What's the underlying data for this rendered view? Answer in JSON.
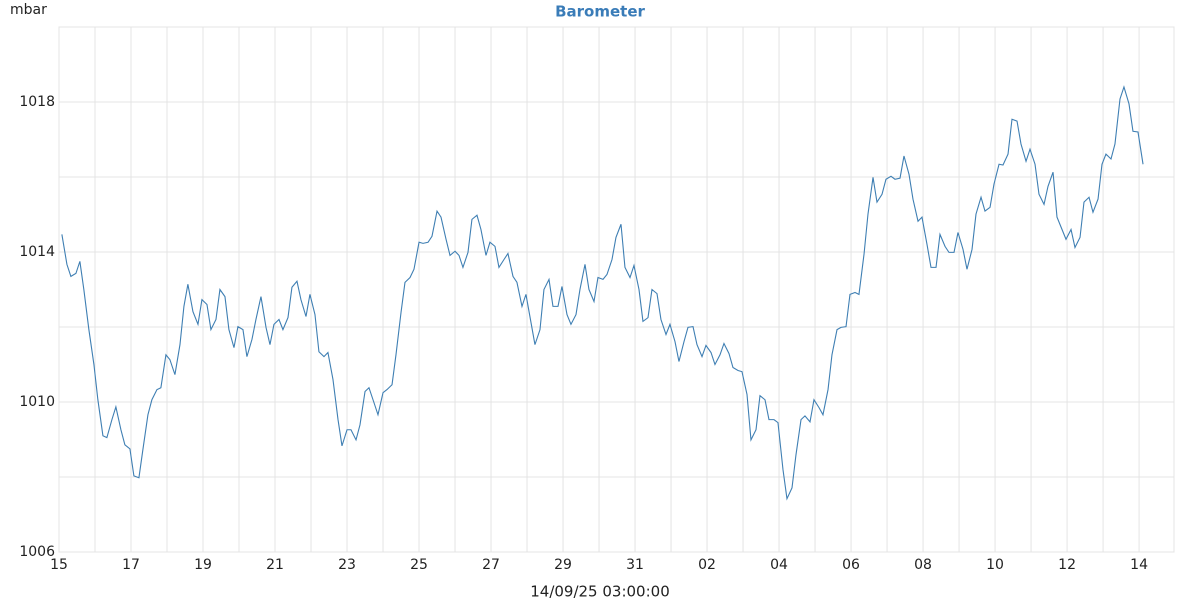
{
  "chart_data": {
    "type": "line",
    "title": "Barometer",
    "ylabel": "mbar",
    "xlabel": "14/09/25 03:00:00",
    "color": "#3f7fb3",
    "grid": true,
    "xlim": [
      0,
      30.97
    ],
    "ylim": [
      1006,
      1020
    ],
    "yticks": [
      1006,
      1010,
      1014,
      1018
    ],
    "yminor_ticks": [
      1008,
      1012,
      1016,
      1020
    ],
    "xticks": [
      {
        "value": 0,
        "label": "15"
      },
      {
        "value": 2,
        "label": "17"
      },
      {
        "value": 4,
        "label": "19"
      },
      {
        "value": 6,
        "label": "21"
      },
      {
        "value": 8,
        "label": "23"
      },
      {
        "value": 10,
        "label": "25"
      },
      {
        "value": 12,
        "label": "27"
      },
      {
        "value": 14,
        "label": "29"
      },
      {
        "value": 16,
        "label": "31"
      },
      {
        "value": 18,
        "label": "02"
      },
      {
        "value": 20,
        "label": "04"
      },
      {
        "value": 22,
        "label": "06"
      },
      {
        "value": 24,
        "label": "08"
      },
      {
        "value": 26,
        "label": "10"
      },
      {
        "value": 28,
        "label": "12"
      },
      {
        "value": 30,
        "label": "14"
      }
    ],
    "xminor_ticks": [
      1,
      3,
      5,
      7,
      9,
      11,
      13,
      15,
      17,
      19,
      21,
      23,
      25,
      27,
      29
    ],
    "x": [
      0.08,
      0.22,
      0.33,
      0.47,
      0.58,
      0.69,
      0.83,
      0.97,
      1.08,
      1.22,
      1.33,
      1.47,
      1.58,
      1.72,
      1.83,
      1.97,
      2.08,
      2.22,
      2.33,
      2.47,
      2.58,
      2.72,
      2.83,
      2.97,
      3.08,
      3.22,
      3.36,
      3.47,
      3.58,
      3.72,
      3.86,
      3.97,
      4.11,
      4.22,
      4.36,
      4.47,
      4.61,
      4.72,
      4.86,
      4.97,
      5.11,
      5.22,
      5.36,
      5.47,
      5.61,
      5.75,
      5.86,
      5.97,
      6.11,
      6.22,
      6.36,
      6.47,
      6.61,
      6.72,
      6.86,
      6.97,
      7.11,
      7.22,
      7.36,
      7.47,
      7.61,
      7.75,
      7.86,
      8.0,
      8.11,
      8.25,
      8.36,
      8.5,
      8.61,
      8.75,
      8.86,
      9.0,
      9.11,
      9.25,
      9.36,
      9.5,
      9.61,
      9.75,
      9.86,
      10.0,
      10.11,
      10.25,
      10.36,
      10.5,
      10.61,
      10.75,
      10.86,
      11.0,
      11.11,
      11.22,
      11.36,
      11.47,
      11.61,
      11.72,
      11.86,
      11.97,
      12.11,
      12.22,
      12.36,
      12.47,
      12.61,
      12.72,
      12.86,
      12.97,
      13.11,
      13.22,
      13.36,
      13.47,
      13.61,
      13.72,
      13.86,
      13.97,
      14.11,
      14.22,
      14.36,
      14.47,
      14.61,
      14.72,
      14.86,
      14.97,
      15.11,
      15.22,
      15.36,
      15.47,
      15.61,
      15.72,
      15.86,
      15.97,
      16.11,
      16.22,
      16.36,
      16.47,
      16.61,
      16.72,
      16.86,
      16.97,
      17.11,
      17.22,
      17.36,
      17.47,
      17.61,
      17.72,
      17.86,
      17.97,
      18.11,
      18.22,
      18.36,
      18.47,
      18.61,
      18.72,
      18.86,
      18.97,
      19.11,
      19.22,
      19.36,
      19.47,
      19.61,
      19.72,
      19.86,
      19.97,
      20.11,
      20.22,
      20.36,
      20.47,
      20.61,
      20.72,
      20.86,
      20.97,
      21.11,
      21.22,
      21.36,
      21.47,
      21.61,
      21.72,
      21.86,
      21.97,
      22.11,
      22.22,
      22.36,
      22.47,
      22.61,
      22.72,
      22.86,
      22.97,
      23.11,
      23.22,
      23.36,
      23.47,
      23.61,
      23.72,
      23.86,
      23.97,
      24.11,
      24.22,
      24.36,
      24.47,
      24.61,
      24.72,
      24.86,
      24.97,
      25.11,
      25.22,
      25.36,
      25.47,
      25.61,
      25.72,
      25.86,
      25.97,
      26.11,
      26.22,
      26.36,
      26.47,
      26.61,
      26.72,
      26.86,
      26.97,
      27.11,
      27.22,
      27.36,
      27.47,
      27.61,
      27.72,
      27.86,
      27.97,
      28.11,
      28.22,
      28.36,
      28.47,
      28.61,
      28.72,
      28.86,
      28.97,
      29.08,
      29.22,
      29.33,
      29.47,
      29.58,
      29.72,
      29.83,
      29.97,
      30.11
    ],
    "values": [
      1014.47,
      1013.67,
      1013.35,
      1013.43,
      1013.75,
      1013.0,
      1011.93,
      1011.0,
      1010.06,
      1009.1,
      1009.05,
      1009.53,
      1009.87,
      1009.26,
      1008.86,
      1008.75,
      1008.03,
      1007.98,
      1008.73,
      1009.66,
      1010.06,
      1010.33,
      1010.38,
      1011.26,
      1011.13,
      1010.73,
      1011.53,
      1012.55,
      1013.14,
      1012.41,
      1012.07,
      1012.73,
      1012.6,
      1011.93,
      1012.2,
      1013.0,
      1012.81,
      1011.93,
      1011.45,
      1012.01,
      1011.93,
      1011.21,
      1011.67,
      1012.2,
      1012.81,
      1011.99,
      1011.53,
      1012.07,
      1012.2,
      1011.93,
      1012.25,
      1013.06,
      1013.22,
      1012.73,
      1012.28,
      1012.87,
      1012.33,
      1011.34,
      1011.21,
      1011.32,
      1010.6,
      1009.53,
      1008.83,
      1009.26,
      1009.26,
      1008.99,
      1009.39,
      1010.28,
      1010.38,
      1009.98,
      1009.66,
      1010.25,
      1010.33,
      1010.46,
      1011.26,
      1012.39,
      1013.19,
      1013.32,
      1013.54,
      1014.26,
      1014.23,
      1014.26,
      1014.42,
      1015.09,
      1014.93,
      1014.34,
      1013.91,
      1014.02,
      1013.91,
      1013.59,
      1013.99,
      1014.87,
      1014.98,
      1014.6,
      1013.91,
      1014.26,
      1014.15,
      1013.59,
      1013.8,
      1013.96,
      1013.35,
      1013.19,
      1012.55,
      1012.87,
      1012.12,
      1011.53,
      1011.93,
      1013.0,
      1013.27,
      1012.55,
      1012.55,
      1013.08,
      1012.33,
      1012.07,
      1012.33,
      1013.0,
      1013.67,
      1013.0,
      1012.68,
      1013.32,
      1013.27,
      1013.4,
      1013.8,
      1014.39,
      1014.74,
      1013.59,
      1013.32,
      1013.64,
      1013.0,
      1012.15,
      1012.25,
      1013.0,
      1012.89,
      1012.2,
      1011.8,
      1012.07,
      1011.61,
      1011.08,
      1011.61,
      1011.99,
      1012.01,
      1011.53,
      1011.21,
      1011.51,
      1011.32,
      1011.0,
      1011.26,
      1011.56,
      1011.29,
      1010.92,
      1010.84,
      1010.81,
      1010.2,
      1008.99,
      1009.26,
      1010.17,
      1010.06,
      1009.53,
      1009.53,
      1009.45,
      1008.19,
      1007.42,
      1007.71,
      1008.59,
      1009.53,
      1009.63,
      1009.47,
      1010.06,
      1009.85,
      1009.66,
      1010.33,
      1011.26,
      1011.93,
      1011.99,
      1012.01,
      1012.87,
      1012.92,
      1012.87,
      1013.94,
      1015.01,
      1015.99,
      1015.33,
      1015.54,
      1015.94,
      1016.02,
      1015.94,
      1015.97,
      1016.56,
      1016.07,
      1015.41,
      1014.82,
      1014.93,
      1014.2,
      1013.59,
      1013.59,
      1014.47,
      1014.15,
      1013.99,
      1013.99,
      1014.52,
      1014.07,
      1013.54,
      1014.07,
      1015.01,
      1015.46,
      1015.09,
      1015.19,
      1015.81,
      1016.34,
      1016.32,
      1016.61,
      1017.54,
      1017.49,
      1016.88,
      1016.42,
      1016.74,
      1016.34,
      1015.54,
      1015.27,
      1015.75,
      1016.13,
      1014.93,
      1014.6,
      1014.34,
      1014.6,
      1014.12,
      1014.39,
      1015.33,
      1015.46,
      1015.06,
      1015.41,
      1016.34,
      1016.61,
      1016.48,
      1016.88,
      1018.08,
      1018.4,
      1017.95,
      1017.22,
      1017.2,
      1016.34
    ]
  }
}
